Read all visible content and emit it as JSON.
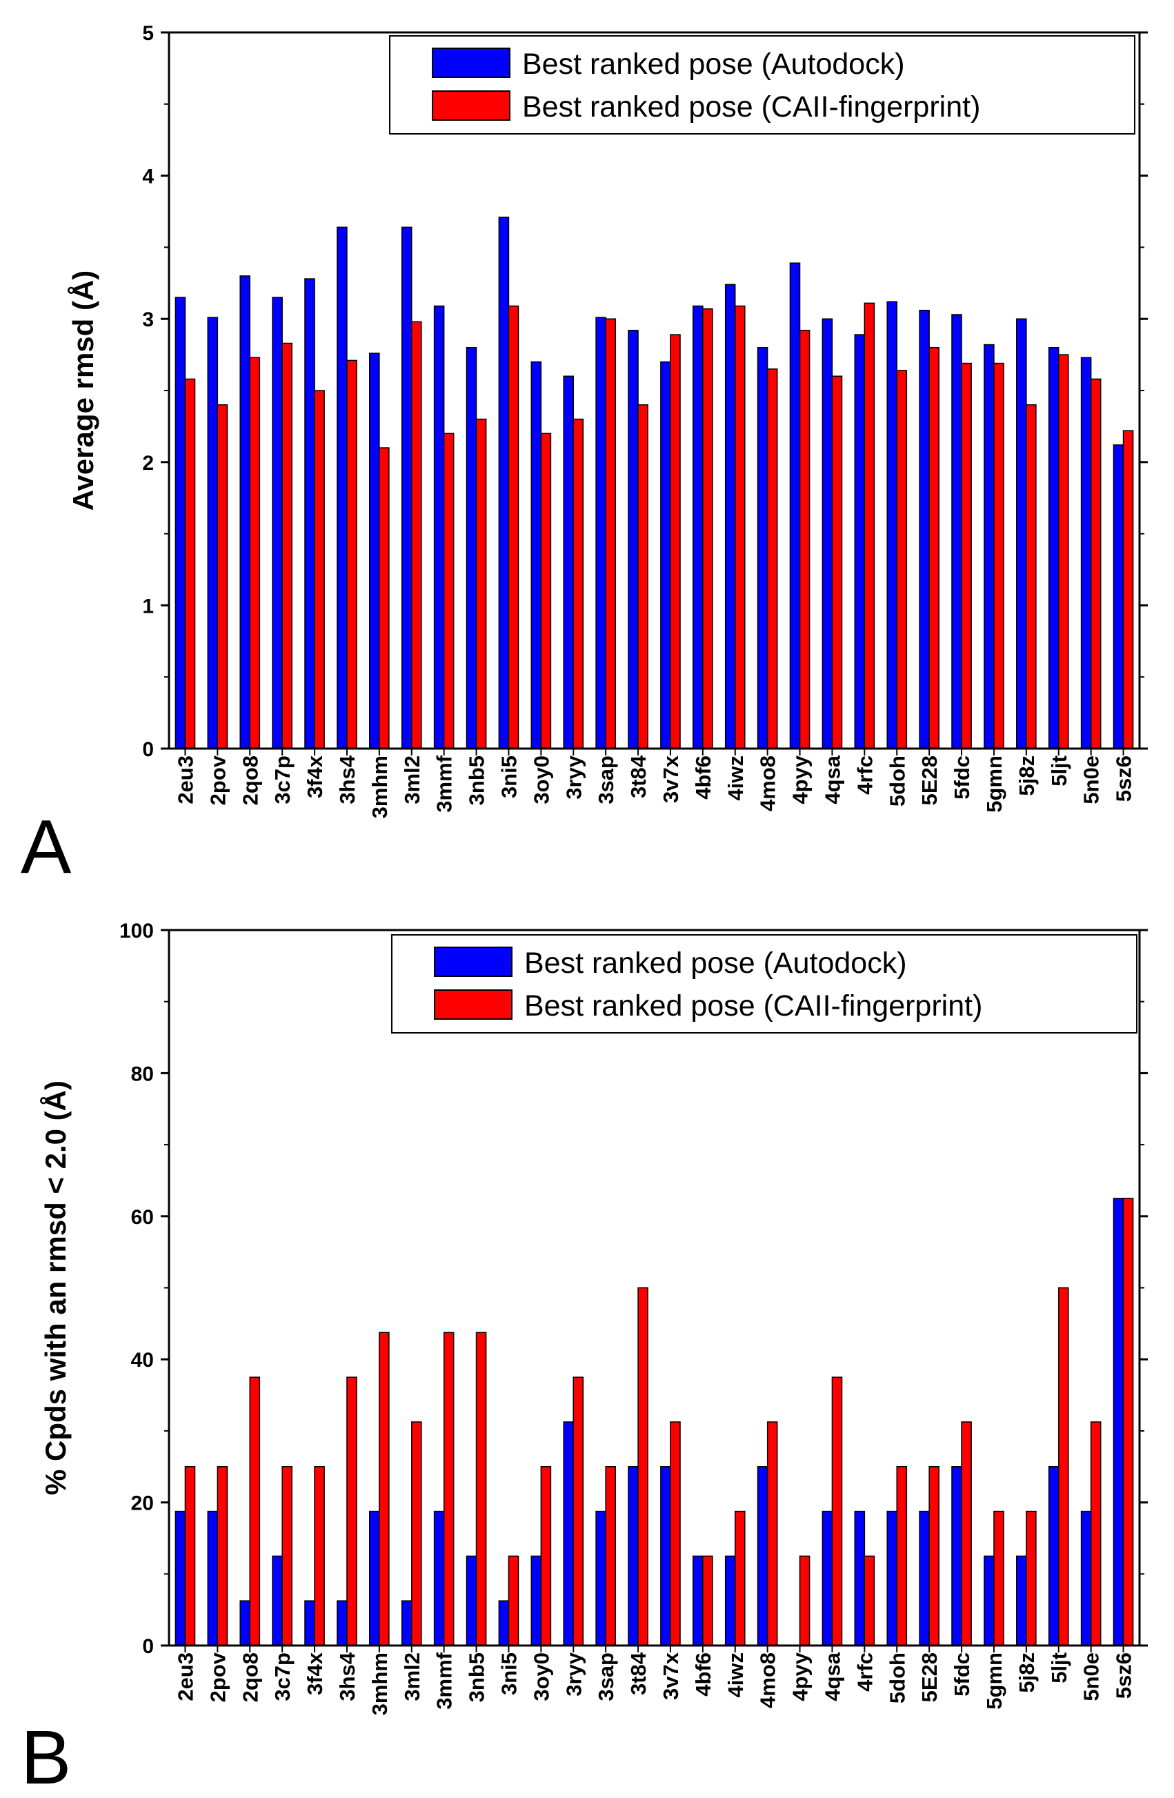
{
  "colors": {
    "series_a": "#0000ff",
    "series_b": "#ff0000",
    "axis": "#000000",
    "background": "#ffffff"
  },
  "chart_data": [
    {
      "panel": "A",
      "type": "bar",
      "title": "",
      "xlabel": "",
      "ylabel": "Average rmsd (Å)",
      "ylim": [
        0,
        5
      ],
      "yticks": [
        0,
        1,
        2,
        3,
        4,
        5
      ],
      "legend_position": "top-right",
      "grid": false,
      "categories": [
        "2eu3",
        "2pov",
        "2qo8",
        "3c7p",
        "3f4x",
        "3hs4",
        "3mhm",
        "3ml2",
        "3mmf",
        "3nb5",
        "3ni5",
        "3oy0",
        "3ryy",
        "3sap",
        "3t84",
        "3v7x",
        "4bf6",
        "4iwz",
        "4mo8",
        "4pyy",
        "4qsa",
        "4rfc",
        "5doh",
        "5E28",
        "5fdc",
        "5gmn",
        "5j8z",
        "5ljt",
        "5n0e",
        "5sz6"
      ],
      "series": [
        {
          "name": "Best ranked pose (Autodock)",
          "values": [
            3.15,
            3.01,
            3.3,
            3.15,
            3.28,
            3.64,
            2.76,
            3.64,
            3.09,
            2.8,
            3.71,
            2.7,
            2.6,
            3.01,
            2.92,
            2.7,
            3.09,
            3.24,
            2.8,
            3.39,
            3.0,
            2.89,
            3.12,
            3.06,
            3.03,
            2.82,
            3.0,
            2.8,
            2.73,
            2.12
          ]
        },
        {
          "name": "Best ranked pose (CAII-fingerprint)",
          "values": [
            2.58,
            2.4,
            2.73,
            2.83,
            2.5,
            2.71,
            2.1,
            2.98,
            2.2,
            2.3,
            3.09,
            2.2,
            2.3,
            3.0,
            2.4,
            2.89,
            3.07,
            3.09,
            2.65,
            2.92,
            2.6,
            3.11,
            2.64,
            2.8,
            2.69,
            2.69,
            2.4,
            2.75,
            2.58,
            2.22
          ]
        }
      ]
    },
    {
      "panel": "B",
      "type": "bar",
      "title": "",
      "xlabel": "",
      "ylabel": "% Cpds with an rmsd < 2.0 (Å)",
      "ylim": [
        0,
        100
      ],
      "yticks": [
        0,
        20,
        40,
        60,
        80,
        100
      ],
      "legend_position": "top-right",
      "grid": false,
      "categories": [
        "2eu3",
        "2pov",
        "2qo8",
        "3c7p",
        "3f4x",
        "3hs4",
        "3mhm",
        "3ml2",
        "3mmf",
        "3nb5",
        "3ni5",
        "3oy0",
        "3ryy",
        "3sap",
        "3t84",
        "3v7x",
        "4bf6",
        "4iwz",
        "4mo8",
        "4pyy",
        "4qsa",
        "4rfc",
        "5doh",
        "5E28",
        "5fdc",
        "5gmn",
        "5j8z",
        "5ljt",
        "5n0e",
        "5sz6"
      ],
      "series": [
        {
          "name": "Best ranked pose (Autodock)",
          "values": [
            18.75,
            18.75,
            6.25,
            12.5,
            6.25,
            6.25,
            18.75,
            6.25,
            18.75,
            12.5,
            6.25,
            12.5,
            31.25,
            18.75,
            25,
            25,
            12.5,
            12.5,
            25,
            0,
            18.75,
            18.75,
            18.75,
            18.75,
            25,
            12.5,
            12.5,
            25,
            18.75,
            62.5
          ]
        },
        {
          "name": "Best ranked pose (CAII-fingerprint)",
          "values": [
            25,
            25,
            37.5,
            25,
            25,
            37.5,
            43.75,
            31.25,
            43.75,
            43.75,
            12.5,
            25,
            37.5,
            25,
            50,
            31.25,
            12.5,
            18.75,
            31.25,
            12.5,
            37.5,
            12.5,
            25,
            25,
            31.25,
            18.75,
            18.75,
            50,
            31.25,
            62.5
          ]
        }
      ]
    }
  ]
}
